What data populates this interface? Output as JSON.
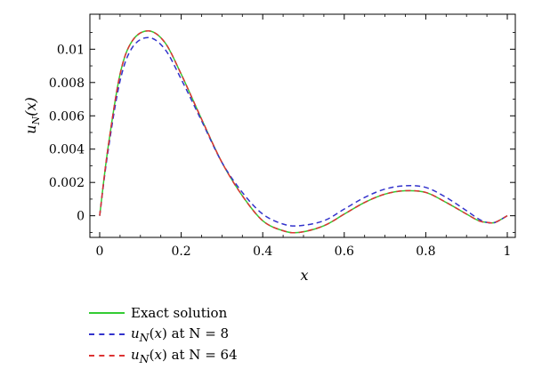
{
  "chart_data": {
    "type": "line",
    "xlabel": "x",
    "ylabel": "u_N(x)",
    "xlim": [
      0,
      1
    ],
    "ylim": [
      -0.0013,
      0.0121
    ],
    "xticks": [
      0,
      0.2,
      0.4,
      0.6,
      0.8,
      1
    ],
    "xtick_labels": [
      "0",
      "0.2",
      "0.4",
      "0.6",
      "0.8",
      "1"
    ],
    "yticks": [
      0,
      0.002,
      0.004,
      0.006,
      0.008,
      0.01
    ],
    "ytick_labels": [
      "0",
      "0.002",
      "0.004",
      "0.006",
      "0.008",
      "0.01"
    ],
    "grid": false,
    "legend_position": "below",
    "x": [
      0,
      0.02,
      0.05,
      0.08,
      0.12,
      0.16,
      0.2,
      0.25,
      0.3,
      0.35,
      0.4,
      0.45,
      0.49,
      0.55,
      0.6,
      0.65,
      0.7,
      0.75,
      0.8,
      0.85,
      0.9,
      0.93,
      0.95,
      0.97,
      1
    ],
    "series": [
      {
        "name": "Exact solution",
        "color": "#33cc33",
        "dash": "solid",
        "values": [
          0,
          0.004,
          0.0085,
          0.0105,
          0.0111,
          0.0104,
          0.0085,
          0.0058,
          0.0032,
          0.0012,
          -0.0003,
          -0.0009,
          -0.001,
          -0.0006,
          0.0001,
          0.0008,
          0.0013,
          0.0015,
          0.0014,
          0.0008,
          0.0001,
          -0.0003,
          -0.0004,
          -0.0004,
          0
        ]
      },
      {
        "name": "at N = 8",
        "color": "#3333cc",
        "dash": "dashed",
        "values": [
          0,
          0.0038,
          0.0081,
          0.0101,
          0.0107,
          0.01,
          0.0082,
          0.0057,
          0.0032,
          0.0014,
          0.0001,
          -0.0005,
          -0.0006,
          -0.0003,
          0.0004,
          0.0011,
          0.0016,
          0.0018,
          0.0017,
          0.0011,
          0.0003,
          -0.0002,
          -0.0004,
          -0.0004,
          0
        ]
      },
      {
        "name": "at N = 64",
        "color": "#dd3333",
        "dash": "dashed",
        "values": [
          0,
          0.004,
          0.0085,
          0.0105,
          0.0111,
          0.0104,
          0.0085,
          0.0058,
          0.0032,
          0.0012,
          -0.0003,
          -0.0009,
          -0.001,
          -0.0006,
          0.0001,
          0.0008,
          0.0013,
          0.0015,
          0.0014,
          0.0008,
          0.0001,
          -0.0003,
          -0.0004,
          -0.0004,
          0
        ]
      }
    ]
  },
  "legend": {
    "items": [
      {
        "prefix": "",
        "label": "Exact solution"
      },
      {
        "prefix": "u_N(x)",
        "label": " at N = 8"
      },
      {
        "prefix": "u_N(x)",
        "label": " at N = 64"
      }
    ]
  }
}
